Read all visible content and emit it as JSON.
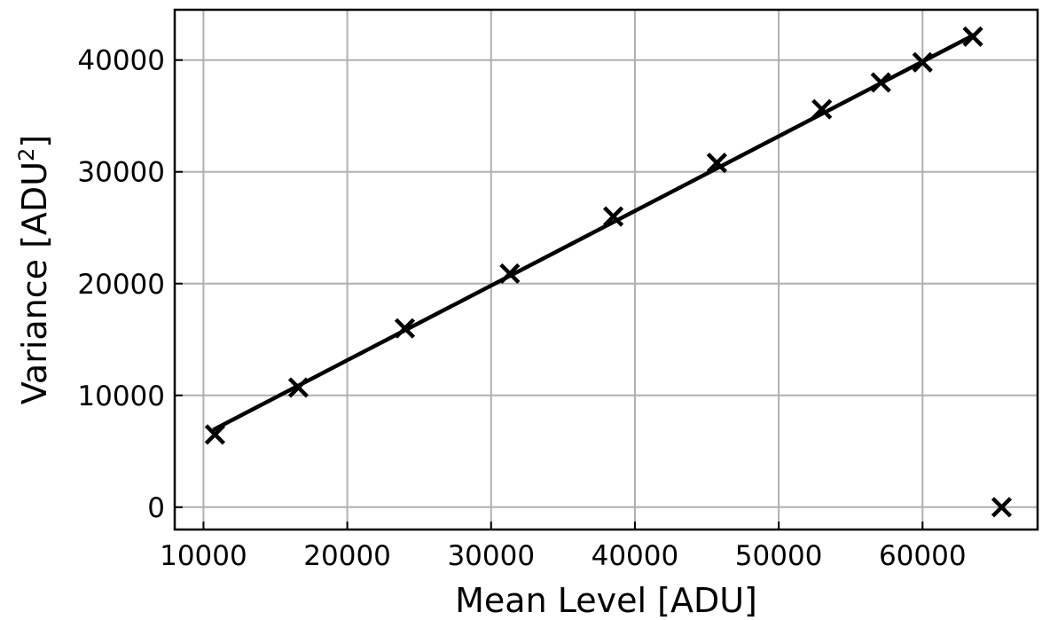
{
  "chart_data": {
    "type": "scatter",
    "xlabel": "Mean Level [ADU]",
    "ylabel_main": "Variance [ADU",
    "ylabel_sup": "2",
    "ylabel_close": "]",
    "xlim": [
      8000,
      68000
    ],
    "ylim": [
      -2000,
      44500
    ],
    "x_ticks": [
      10000,
      20000,
      30000,
      40000,
      50000,
      60000
    ],
    "y_ticks": [
      0,
      10000,
      20000,
      30000,
      40000
    ],
    "grid": true,
    "points": [
      {
        "x": 10800,
        "y": 6500
      },
      {
        "x": 16600,
        "y": 10700
      },
      {
        "x": 24000,
        "y": 16000
      },
      {
        "x": 31300,
        "y": 20900
      },
      {
        "x": 38500,
        "y": 26000
      },
      {
        "x": 45700,
        "y": 30800
      },
      {
        "x": 53000,
        "y": 35600
      },
      {
        "x": 57100,
        "y": 38000
      },
      {
        "x": 60000,
        "y": 39800
      },
      {
        "x": 63500,
        "y": 42100
      },
      {
        "x": 65500,
        "y": 0
      }
    ],
    "fit_line": {
      "x": [
        10800,
        63500
      ],
      "y": [
        7000,
        42200
      ]
    },
    "colors": {
      "marker": "#000000",
      "line": "#000000",
      "grid": "#b0b0b0"
    }
  }
}
